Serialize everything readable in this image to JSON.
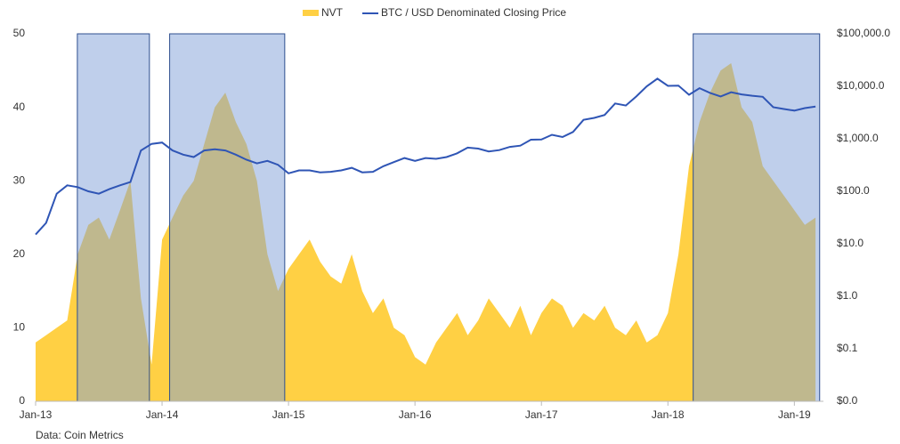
{
  "chart_data": {
    "type": "combo",
    "x": [
      2013,
      2013.083,
      2013.167,
      2013.25,
      2013.333,
      2013.417,
      2013.5,
      2013.583,
      2013.667,
      2013.75,
      2013.833,
      2013.917,
      2014,
      2014.083,
      2014.167,
      2014.25,
      2014.333,
      2014.417,
      2014.5,
      2014.583,
      2014.667,
      2014.75,
      2014.833,
      2014.917,
      2015,
      2015.083,
      2015.167,
      2015.25,
      2015.333,
      2015.417,
      2015.5,
      2015.583,
      2015.667,
      2015.75,
      2015.833,
      2015.917,
      2016,
      2016.083,
      2016.167,
      2016.25,
      2016.333,
      2016.417,
      2016.5,
      2016.583,
      2016.667,
      2016.75,
      2016.833,
      2016.917,
      2017,
      2017.083,
      2017.167,
      2017.25,
      2017.333,
      2017.417,
      2017.5,
      2017.583,
      2017.667,
      2017.75,
      2017.833,
      2017.917,
      2018,
      2018.083,
      2018.167,
      2018.25,
      2018.333,
      2018.417,
      2018.5,
      2018.583,
      2018.667,
      2018.75,
      2018.833,
      2018.917,
      2019,
      2019.083,
      2019.167
    ],
    "series": [
      {
        "name": "NVT",
        "style": "area",
        "color": "#ffd044",
        "values": [
          8,
          9,
          10,
          11,
          20,
          24,
          25,
          22,
          26,
          30,
          14,
          5,
          22,
          25,
          28,
          30,
          35,
          40,
          42,
          38,
          35,
          30,
          20,
          15,
          18,
          20,
          22,
          19,
          17,
          16,
          20,
          15,
          12,
          14,
          10,
          9,
          6,
          5,
          8,
          10,
          12,
          9,
          11,
          14,
          12,
          10,
          13,
          9,
          12,
          14,
          13,
          10,
          12,
          11,
          13,
          10,
          9,
          11,
          8,
          9,
          12,
          20,
          32,
          38,
          42,
          45,
          46,
          40,
          38,
          32,
          30,
          28,
          26,
          24,
          25
        ]
      },
      {
        "name": "BTC / USD Denominated Closing Price",
        "style": "line",
        "axis": "y2",
        "color": "#2f55b5",
        "values": [
          15,
          25,
          90,
          130,
          120,
          100,
          90,
          110,
          130,
          150,
          600,
          800,
          850,
          600,
          500,
          450,
          600,
          630,
          600,
          500,
          400,
          340,
          380,
          320,
          220,
          250,
          250,
          230,
          235,
          250,
          280,
          230,
          235,
          300,
          360,
          430,
          380,
          430,
          415,
          450,
          530,
          680,
          650,
          575,
          610,
          700,
          740,
          960,
          970,
          1190,
          1080,
          1350,
          2300,
          2500,
          2850,
          4700,
          4300,
          6400,
          10000,
          14000,
          10200,
          10300,
          6900,
          9200,
          7500,
          6400,
          7700,
          7000,
          6600,
          6300,
          4000,
          3700,
          3450,
          3850,
          4100
        ]
      }
    ],
    "highlights": [
      {
        "start": 2013.33,
        "end": 2013.9
      },
      {
        "start": 2014.06,
        "end": 2014.97
      },
      {
        "start": 2018.2,
        "end": 2019.2
      }
    ],
    "highlight_color": "#7f9fd8",
    "xlim": [
      2013,
      2019.23
    ],
    "xticks": [
      {
        "value": 2013,
        "label": "Jan-13"
      },
      {
        "value": 2014,
        "label": "Jan-14"
      },
      {
        "value": 2015,
        "label": "Jan-15"
      },
      {
        "value": 2016,
        "label": "Jan-16"
      },
      {
        "value": 2017,
        "label": "Jan-17"
      },
      {
        "value": 2018,
        "label": "Jan-18"
      },
      {
        "value": 2019,
        "label": "Jan-19"
      }
    ],
    "ylim": [
      0,
      50
    ],
    "yticks": [
      0,
      10,
      20,
      30,
      40,
      50
    ],
    "y2lim": [
      0.01,
      100000
    ],
    "y2scale": "log",
    "y2ticks": [
      {
        "value": 0.01,
        "label": "$0.0"
      },
      {
        "value": 0.1,
        "label": "$0.1"
      },
      {
        "value": 1,
        "label": "$1.0"
      },
      {
        "value": 10,
        "label": "$10.0"
      },
      {
        "value": 100,
        "label": "$100.0"
      },
      {
        "value": 1000,
        "label": "$1,000.0"
      },
      {
        "value": 10000,
        "label": "$10,000.0"
      },
      {
        "value": 100000,
        "label": "$100,000.0"
      }
    ],
    "source": "Data: Coin Metrics"
  }
}
